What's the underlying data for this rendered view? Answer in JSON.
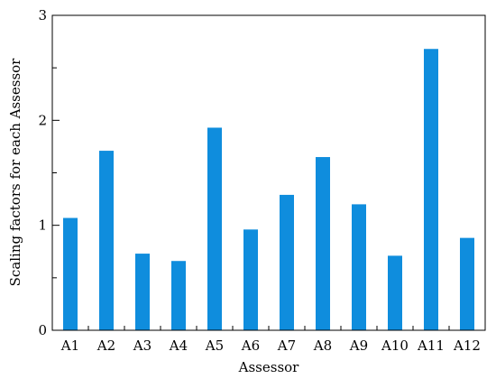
{
  "chart_data": {
    "type": "bar",
    "categories": [
      "A1",
      "A2",
      "A3",
      "A4",
      "A5",
      "A6",
      "A7",
      "A8",
      "A9",
      "A10",
      "A11",
      "A12"
    ],
    "values": [
      1.07,
      1.71,
      0.73,
      0.66,
      1.93,
      0.96,
      1.29,
      1.65,
      1.2,
      0.71,
      2.68,
      0.88
    ],
    "xlabel": "Assessor",
    "ylabel": "Scaling factors for each Assessor",
    "ylim": [
      0,
      3
    ],
    "yticks_labeled": [
      0,
      1,
      2,
      3
    ],
    "yticks_minor": [
      0.5,
      1.5,
      2.5
    ],
    "bar_color": "#0f8ddd",
    "grid": false,
    "legend": "none"
  }
}
